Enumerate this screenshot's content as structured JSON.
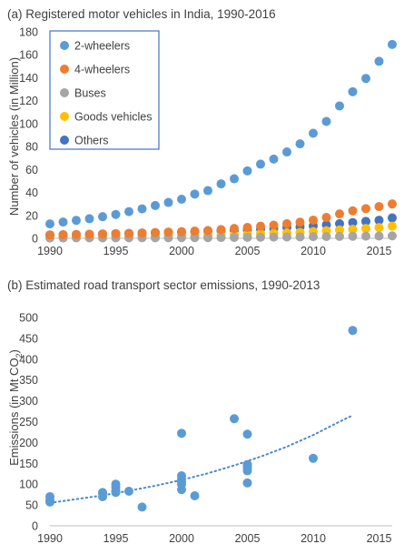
{
  "chart_data": [
    {
      "type": "scatter",
      "title": "(a) Registered motor vehicles in India, 1990-2016",
      "xlabel": "",
      "ylabel": "Number of vehicles (in Million)",
      "xlim": [
        1990,
        2016
      ],
      "ylim": [
        0,
        180
      ],
      "x_ticks": [
        1990,
        1995,
        2000,
        2005,
        2010,
        2015
      ],
      "y_ticks": [
        0,
        20,
        40,
        60,
        80,
        100,
        120,
        140,
        160,
        180
      ],
      "grid": false,
      "legend_position": "top-left",
      "series": [
        {
          "name": "2-wheelers",
          "color": "#5B9BD5",
          "x": [
            1990,
            1991,
            1992,
            1993,
            1994,
            1995,
            1996,
            1997,
            1998,
            1999,
            2000,
            2001,
            2002,
            2003,
            2004,
            2005,
            2006,
            2007,
            2008,
            2009,
            2010,
            2011,
            2012,
            2013,
            2014,
            2015,
            2016
          ],
          "y": [
            12.6,
            14.2,
            15.7,
            17.1,
            18.9,
            20.8,
            23.3,
            25.7,
            28.6,
            31.3,
            34.1,
            38.6,
            41.6,
            47.5,
            51.9,
            58.8,
            64.7,
            69.1,
            75.3,
            82.4,
            91.6,
            101.9,
            115.4,
            127.8,
            139.4,
            154.3,
            169.0
          ]
        },
        {
          "name": "4-wheelers",
          "color": "#ED7D31",
          "x": [
            1990,
            1991,
            1992,
            1993,
            1994,
            1995,
            1996,
            1997,
            1998,
            1999,
            2000,
            2001,
            2002,
            2003,
            2004,
            2005,
            2006,
            2007,
            2008,
            2009,
            2010,
            2011,
            2012,
            2013,
            2014,
            2015,
            2016
          ],
          "y": [
            3.0,
            3.2,
            3.4,
            3.6,
            3.8,
            4.1,
            4.3,
            4.7,
            5.1,
            5.5,
            5.8,
            6.3,
            6.8,
            7.6,
            8.6,
            9.5,
            10.6,
            11.5,
            12.8,
            14.1,
            15.9,
            18.2,
            21.3,
            24.0,
            25.9,
            27.7,
            30.0
          ]
        },
        {
          "name": "Buses",
          "color": "#A5A5A5",
          "x": [
            1990,
            1991,
            1992,
            1993,
            1994,
            1995,
            1996,
            1997,
            1998,
            1999,
            2000,
            2001,
            2002,
            2003,
            2004,
            2005,
            2006,
            2007,
            2008,
            2009,
            2010,
            2011,
            2012,
            2013,
            2014,
            2015,
            2016
          ],
          "y": [
            0.3,
            0.3,
            0.4,
            0.4,
            0.4,
            0.4,
            0.5,
            0.5,
            0.5,
            0.5,
            0.6,
            0.6,
            0.6,
            0.7,
            0.8,
            0.9,
            1.0,
            1.1,
            1.2,
            1.3,
            1.5,
            1.6,
            1.7,
            1.8,
            1.9,
            2.0,
            2.2
          ]
        },
        {
          "name": "Goods vehicles",
          "color": "#FFC000",
          "x": [
            1990,
            1991,
            1992,
            1993,
            1994,
            1995,
            1996,
            1997,
            1998,
            1999,
            2000,
            2001,
            2002,
            2003,
            2004,
            2005,
            2006,
            2007,
            2008,
            2009,
            2010,
            2011,
            2012,
            2013,
            2014,
            2015,
            2016
          ],
          "y": [
            1.4,
            1.4,
            1.5,
            1.6,
            1.7,
            1.8,
            2.0,
            2.2,
            2.4,
            2.5,
            2.6,
            2.7,
            2.9,
            3.1,
            3.4,
            3.7,
            4.0,
            4.3,
            4.8,
            5.2,
            5.9,
            6.6,
            7.3,
            7.9,
            8.6,
            9.4,
            10.6
          ]
        },
        {
          "name": "Others",
          "color": "#4472C4",
          "x": [
            1990,
            1991,
            1992,
            1993,
            1994,
            1995,
            1996,
            1997,
            1998,
            1999,
            2000,
            2001,
            2002,
            2003,
            2004,
            2005,
            2006,
            2007,
            2008,
            2009,
            2010,
            2011,
            2012,
            2013,
            2014,
            2015,
            2016
          ],
          "y": [
            2.9,
            3.1,
            3.3,
            3.5,
            3.8,
            4.0,
            4.3,
            4.6,
            4.9,
            5.2,
            5.5,
            5.8,
            6.1,
            6.5,
            6.9,
            7.4,
            8.0,
            8.6,
            9.3,
            10.0,
            10.8,
            11.8,
            12.8,
            13.8,
            14.8,
            15.8,
            17.8
          ]
        }
      ]
    },
    {
      "type": "scatter",
      "title": "(b) Estimated road transport sector emissions, 1990-2013",
      "xlabel": "",
      "ylabel_main": "Emissions (in Mt CO",
      "ylabel_subscript": "2",
      "ylabel_close": ")",
      "xlim": [
        1990,
        2016
      ],
      "ylim": [
        0,
        500
      ],
      "x_ticks": [
        1990,
        1995,
        2000,
        2005,
        2010,
        2015
      ],
      "y_ticks": [
        0,
        50,
        100,
        150,
        200,
        250,
        300,
        350,
        400,
        450,
        500
      ],
      "grid": false,
      "series": [
        {
          "color": "#5B9BD5",
          "x": [
            1990,
            1990,
            1990,
            1994,
            1994,
            1994,
            1995,
            1995,
            1995,
            1995,
            1996,
            1997,
            2000,
            2000,
            2000,
            2000,
            2000,
            2000,
            2001,
            2004,
            2005,
            2005,
            2005,
            2005,
            2005,
            2005,
            2010,
            2013
          ],
          "y": [
            57,
            62,
            70,
            70,
            78,
            80,
            80,
            85,
            93,
            100,
            83,
            45,
            87,
            105,
            112,
            120,
            222,
            100,
            72,
            257,
            103,
            132,
            138,
            143,
            147,
            220,
            162,
            469
          ]
        }
      ],
      "trendline": {
        "style": "exponential-dotted",
        "color": "#4A8ACB",
        "x": [
          1990,
          1992,
          1994,
          1996,
          1998,
          2000,
          2002,
          2004,
          2006,
          2008,
          2010,
          2012,
          2013
        ],
        "y": [
          55,
          64,
          73,
          84,
          96,
          110,
          126,
          145,
          166,
          190,
          218,
          250,
          265
        ]
      }
    }
  ]
}
